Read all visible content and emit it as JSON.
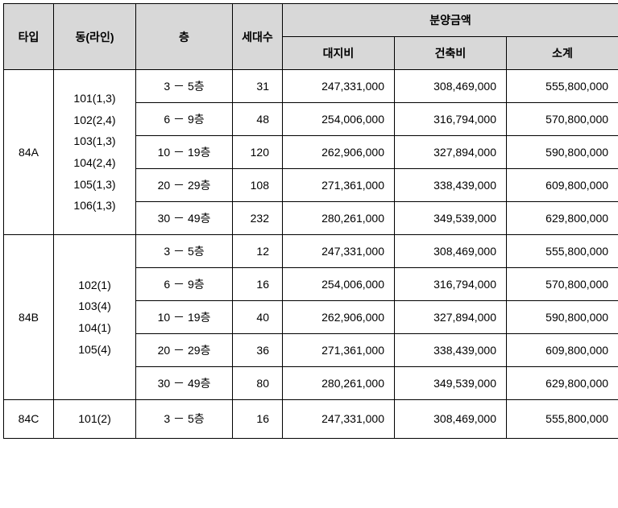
{
  "headers": {
    "type": "타입",
    "dong": "동(라인)",
    "floor": "층",
    "count": "세대수",
    "price_group": "분양금액",
    "land_cost": "대지비",
    "build_cost": "건축비",
    "subtotal": "소계"
  },
  "groups": [
    {
      "type": "84A",
      "dong_lines": [
        "101(1,3)",
        "102(2,4)",
        "103(1,3)",
        "104(2,4)",
        "105(1,3)",
        "106(1,3)"
      ],
      "rows": [
        {
          "floor": "3 － 5층",
          "count": "31",
          "land": "247,331,000",
          "build": "308,469,000",
          "sub": "555,800,000"
        },
        {
          "floor": "6 － 9층",
          "count": "48",
          "land": "254,006,000",
          "build": "316,794,000",
          "sub": "570,800,000"
        },
        {
          "floor": "10 － 19층",
          "count": "120",
          "land": "262,906,000",
          "build": "327,894,000",
          "sub": "590,800,000"
        },
        {
          "floor": "20 － 29층",
          "count": "108",
          "land": "271,361,000",
          "build": "338,439,000",
          "sub": "609,800,000"
        },
        {
          "floor": "30 － 49층",
          "count": "232",
          "land": "280,261,000",
          "build": "349,539,000",
          "sub": "629,800,000"
        }
      ]
    },
    {
      "type": "84B",
      "dong_lines": [
        "102(1)",
        "103(4)",
        "104(1)",
        "105(4)"
      ],
      "rows": [
        {
          "floor": "3 － 5층",
          "count": "12",
          "land": "247,331,000",
          "build": "308,469,000",
          "sub": "555,800,000"
        },
        {
          "floor": "6 － 9층",
          "count": "16",
          "land": "254,006,000",
          "build": "316,794,000",
          "sub": "570,800,000"
        },
        {
          "floor": "10 － 19층",
          "count": "40",
          "land": "262,906,000",
          "build": "327,894,000",
          "sub": "590,800,000"
        },
        {
          "floor": "20 － 29층",
          "count": "36",
          "land": "271,361,000",
          "build": "338,439,000",
          "sub": "609,800,000"
        },
        {
          "floor": "30 － 49층",
          "count": "80",
          "land": "280,261,000",
          "build": "349,539,000",
          "sub": "629,800,000"
        }
      ]
    },
    {
      "type": "84C",
      "dong_lines": [
        "101(2)"
      ],
      "rows": [
        {
          "floor": "3 － 5층",
          "count": "16",
          "land": "247,331,000",
          "build": "308,469,000",
          "sub": "555,800,000"
        }
      ]
    }
  ]
}
